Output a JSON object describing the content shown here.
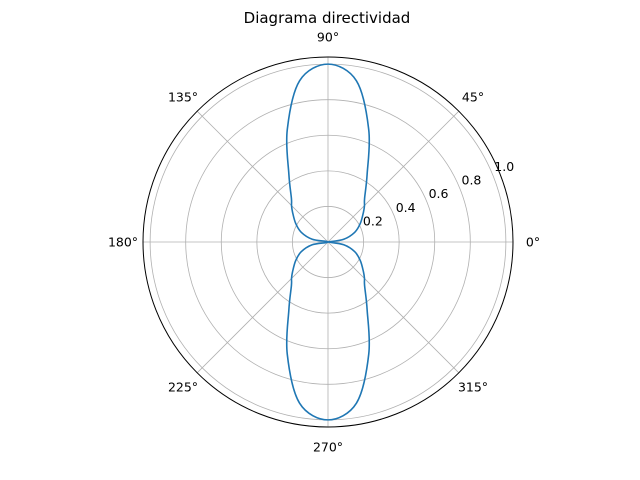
{
  "chart_data": {
    "type": "line",
    "projection": "polar",
    "title": "Diagrama directividad",
    "angle_unit": "degrees",
    "angle_ticks": [
      0,
      45,
      90,
      135,
      180,
      225,
      270,
      315
    ],
    "angle_tick_labels": [
      "0°",
      "45°",
      "90°",
      "135°",
      "180°",
      "225°",
      "270°",
      "315°"
    ],
    "r_ticks": [
      0.2,
      0.4,
      0.6,
      0.8,
      1.0
    ],
    "r_tick_labels": [
      "0.2",
      "0.4",
      "0.6",
      "0.8",
      "1.0"
    ],
    "r_range": [
      0,
      1.04
    ],
    "grid": true,
    "legend": "none",
    "colors": {
      "series": "#1f77b4",
      "grid": "#b0b0b0",
      "frame": "#000000"
    },
    "series": [
      {
        "theta_deg": [
          0,
          10,
          20,
          30,
          40,
          45,
          50,
          60,
          70,
          80,
          90,
          100,
          110,
          120,
          130,
          135,
          140,
          150,
          160,
          170,
          180,
          190,
          200,
          210,
          220,
          225,
          230,
          240,
          250,
          260,
          270,
          280,
          290,
          300,
          310,
          315,
          320,
          330,
          340,
          350,
          360
        ],
        "r": [
          0.0,
          0.09,
          0.16,
          0.21,
          0.26,
          0.29,
          0.32,
          0.44,
          0.67,
          0.92,
          1.0,
          0.92,
          0.67,
          0.44,
          0.32,
          0.29,
          0.26,
          0.21,
          0.16,
          0.09,
          0.0,
          0.09,
          0.16,
          0.21,
          0.26,
          0.29,
          0.32,
          0.44,
          0.67,
          0.92,
          1.0,
          0.92,
          0.67,
          0.44,
          0.32,
          0.29,
          0.26,
          0.21,
          0.16,
          0.09,
          0.0
        ]
      }
    ]
  }
}
